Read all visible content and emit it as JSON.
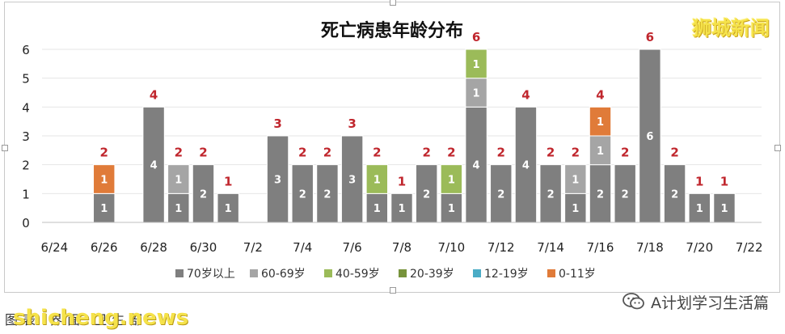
{
  "chart_data": {
    "type": "bar",
    "stacked": true,
    "title": "死亡病患年龄分布",
    "xlabel": "",
    "ylabel": "",
    "ylim": [
      0,
      6
    ],
    "yticks": [
      "0",
      "1",
      "2",
      "3",
      "4",
      "5",
      "6"
    ],
    "grid": true,
    "legend_position": "bottom",
    "categories": [
      "6/24",
      "6/25",
      "6/26",
      "6/27",
      "6/28",
      "6/29",
      "6/30",
      "7/1",
      "7/2",
      "7/3",
      "7/4",
      "7/5",
      "7/6",
      "7/7",
      "7/8",
      "7/9",
      "7/10",
      "7/11",
      "7/12",
      "7/13",
      "7/14",
      "7/15",
      "7/16",
      "7/17",
      "7/18",
      "7/19",
      "7/20",
      "7/21",
      "7/22"
    ],
    "tick_labels": [
      "6/24",
      "",
      "6/26",
      "",
      "6/28",
      "",
      "6/30",
      "",
      "7/2",
      "",
      "7/4",
      "",
      "7/6",
      "",
      "7/8",
      "",
      "7/10",
      "",
      "7/12",
      "",
      "7/14",
      "",
      "7/16",
      "",
      "7/18",
      "",
      "7/20",
      "",
      "7/22"
    ],
    "series": [
      {
        "name": "70岁以上",
        "color": "#7f7f7f",
        "values": [
          0,
          0,
          1,
          0,
          4,
          1,
          2,
          1,
          0,
          3,
          2,
          2,
          3,
          1,
          1,
          2,
          1,
          4,
          2,
          4,
          2,
          1,
          2,
          2,
          6,
          2,
          1,
          1,
          0
        ]
      },
      {
        "name": "60-69岁",
        "color": "#a5a5a5",
        "values": [
          0,
          0,
          0,
          0,
          0,
          1,
          0,
          0,
          0,
          0,
          0,
          0,
          0,
          0,
          0,
          0,
          0,
          1,
          0,
          0,
          0,
          1,
          1,
          0,
          0,
          0,
          0,
          0,
          0
        ]
      },
      {
        "name": "40-59岁",
        "color": "#9bbb59",
        "values": [
          0,
          0,
          0,
          0,
          0,
          0,
          0,
          0,
          0,
          0,
          0,
          0,
          0,
          1,
          0,
          0,
          1,
          1,
          0,
          0,
          0,
          0,
          0,
          0,
          0,
          0,
          0,
          0,
          0
        ]
      },
      {
        "name": "20-39岁",
        "color": "#77933c",
        "values": [
          0,
          0,
          0,
          0,
          0,
          0,
          0,
          0,
          0,
          0,
          0,
          0,
          0,
          0,
          0,
          0,
          0,
          0,
          0,
          0,
          0,
          0,
          0,
          0,
          0,
          0,
          0,
          0,
          0
        ]
      },
      {
        "name": "12-19岁",
        "color": "#4bacc6",
        "values": [
          0,
          0,
          0,
          0,
          0,
          0,
          0,
          0,
          0,
          0,
          0,
          0,
          0,
          0,
          0,
          0,
          0,
          0,
          0,
          0,
          0,
          0,
          0,
          0,
          0,
          0,
          0,
          0,
          0
        ]
      },
      {
        "name": "0-11岁",
        "color": "#e07b39",
        "values": [
          0,
          0,
          1,
          0,
          0,
          0,
          0,
          0,
          0,
          0,
          0,
          0,
          0,
          0,
          0,
          0,
          0,
          0,
          0,
          0,
          0,
          0,
          1,
          0,
          0,
          0,
          0,
          0,
          0
        ]
      }
    ],
    "totals": [
      0,
      0,
      2,
      0,
      4,
      2,
      2,
      1,
      0,
      3,
      2,
      2,
      3,
      2,
      1,
      2,
      2,
      6,
      2,
      4,
      2,
      2,
      4,
      2,
      6,
      2,
      1,
      1,
      0
    ],
    "total_label_color": "#c0262d"
  },
  "branding": {
    "top_right_logo": "狮城新闻",
    "bottom_left_caption": "图表 界面 卫生部",
    "bottom_left_watermark": "shicheng.news",
    "bottom_right_account": "A计划学习生活篇"
  }
}
